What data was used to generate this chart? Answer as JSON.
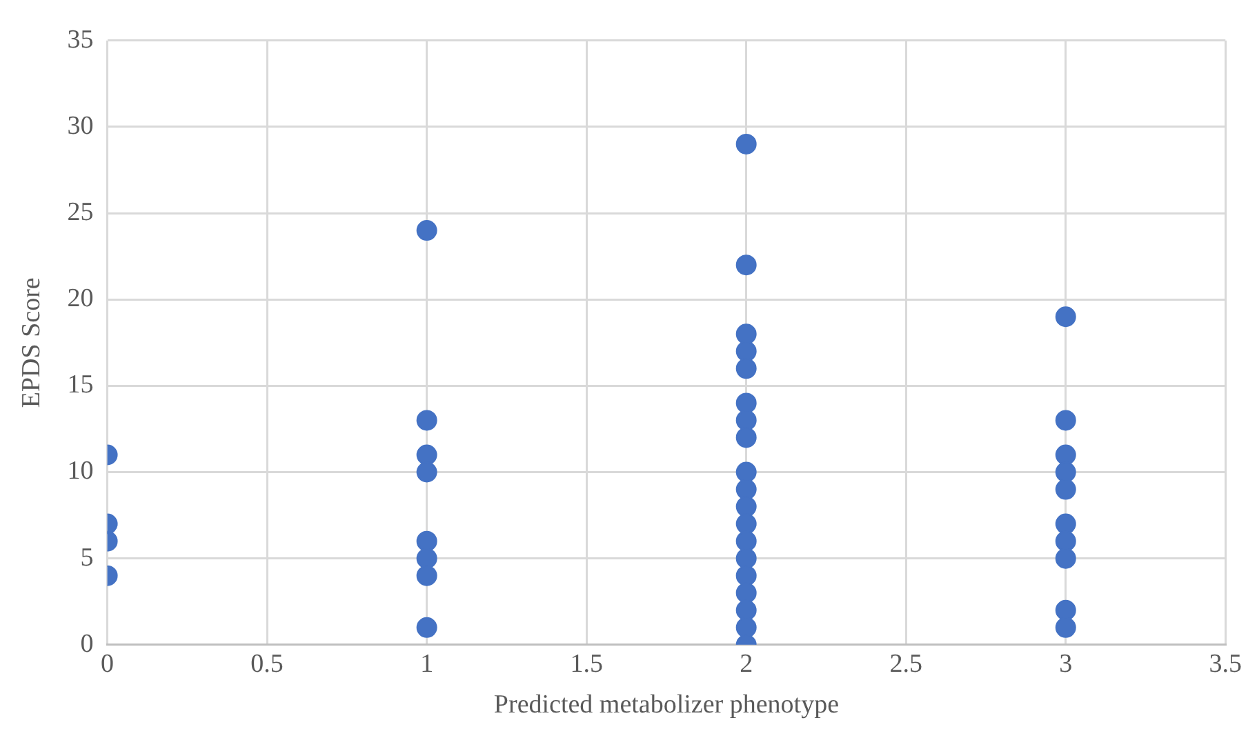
{
  "chart_data": {
    "type": "scatter",
    "xlabel": "Predicted metabolizer phenotype",
    "ylabel": "EPDS Score",
    "x": [
      0,
      0,
      0,
      0,
      1,
      1,
      1,
      1,
      1,
      1,
      1,
      1,
      2,
      2,
      2,
      2,
      2,
      2,
      2,
      2,
      2,
      2,
      2,
      2,
      2,
      2,
      2,
      2,
      2,
      2,
      2,
      3,
      3,
      3,
      3,
      3,
      3,
      3,
      3,
      3,
      3
    ],
    "values": [
      11,
      7,
      6,
      4,
      24,
      13,
      11,
      10,
      6,
      5,
      4,
      1,
      29,
      22,
      18,
      17,
      16,
      14,
      13,
      12,
      10,
      9,
      8,
      7,
      6,
      5,
      4,
      3,
      2,
      1,
      0,
      19,
      13,
      11,
      10,
      9,
      7,
      6,
      5,
      2,
      1
    ],
    "color": "#4472c4",
    "marker": "circle",
    "xlim": [
      0,
      3.5
    ],
    "xticks": [
      0,
      0.5,
      1,
      1.5,
      2,
      2.5,
      3,
      3.5
    ],
    "ylim": [
      0,
      35
    ],
    "yticks": [
      0,
      5,
      10,
      15,
      20,
      25,
      30,
      35
    ],
    "grid": true,
    "legend": false
  }
}
